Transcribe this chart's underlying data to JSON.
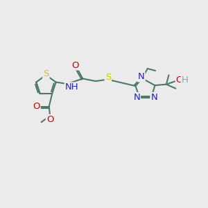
{
  "bg_color": "#ebebeb",
  "bond_color": "#4a7a6a",
  "bond_width": 1.5,
  "atom_colors": {
    "S": "#cccc00",
    "N": "#2020cc",
    "O": "#cc0000",
    "C": "#4a7a6a",
    "H": "#8aaaaa"
  },
  "font_size_atom": 9.5,
  "font_size_sub": 8,
  "figsize": [
    3.0,
    3.0
  ],
  "dpi": 100
}
